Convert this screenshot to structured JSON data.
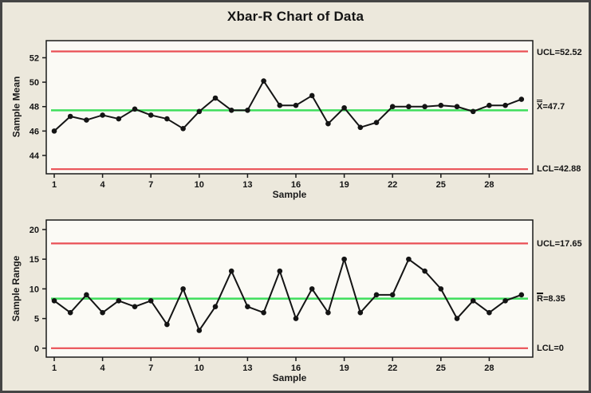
{
  "title": "Xbar-R Chart of Data",
  "colors": {
    "background": "#ece8dc",
    "plot_background": "#fbfaf5",
    "frame": "#1a1a1a",
    "limit_line": "#ea4f55",
    "center_line": "#3ede5c",
    "series_line": "#141414",
    "text": "#141414"
  },
  "chart_data": [
    {
      "type": "line",
      "name": "xbar-chart",
      "ylabel": "Sample Mean",
      "xlabel": "Sample",
      "ucl": 52.52,
      "center": 47.7,
      "lcl": 42.88,
      "ucl_label": "UCL=52.52",
      "center_symbol": "X",
      "center_value": "=47.7",
      "lcl_label": "LCL=42.88",
      "ylim": [
        42.5,
        53.4
      ],
      "yticks": [
        44,
        46,
        48,
        50,
        52
      ],
      "xticks": [
        1,
        4,
        7,
        10,
        13,
        16,
        19,
        22,
        25,
        28
      ],
      "x": [
        1,
        2,
        3,
        4,
        5,
        6,
        7,
        8,
        9,
        10,
        11,
        12,
        13,
        14,
        15,
        16,
        17,
        18,
        19,
        20,
        21,
        22,
        23,
        24,
        25,
        26,
        27,
        28,
        29,
        30
      ],
      "values": [
        46.0,
        47.2,
        46.9,
        47.3,
        47.0,
        47.8,
        47.3,
        47.0,
        46.2,
        47.6,
        48.7,
        47.7,
        47.7,
        50.1,
        48.1,
        48.1,
        48.9,
        46.6,
        47.9,
        46.3,
        46.7,
        48.0,
        48.0,
        48.0,
        48.1,
        48.0,
        47.6,
        48.1,
        48.1,
        48.6
      ],
      "legend_position": "right-annotations",
      "grid": false
    },
    {
      "type": "line",
      "name": "range-chart",
      "ylabel": "Sample Range",
      "xlabel": "Sample",
      "ucl": 17.65,
      "center": 8.35,
      "lcl": 0,
      "ucl_label": "UCL=17.65",
      "center_symbol": "R",
      "center_value": "=8.35",
      "lcl_label": "LCL=0",
      "ylim": [
        -1.5,
        21.6
      ],
      "yticks": [
        0,
        5,
        10,
        15,
        20
      ],
      "xticks": [
        1,
        4,
        7,
        10,
        13,
        16,
        19,
        22,
        25,
        28
      ],
      "x": [
        1,
        2,
        3,
        4,
        5,
        6,
        7,
        8,
        9,
        10,
        11,
        12,
        13,
        14,
        15,
        16,
        17,
        18,
        19,
        20,
        21,
        22,
        23,
        24,
        25,
        26,
        27,
        28,
        29,
        30
      ],
      "values": [
        8,
        6,
        9,
        6,
        8,
        7,
        8,
        4,
        10,
        3,
        7,
        13,
        7,
        6,
        13,
        5,
        10,
        6,
        15,
        6,
        9,
        9,
        15,
        13,
        10,
        5,
        8,
        6,
        8,
        9
      ],
      "legend_position": "right-annotations",
      "grid": false
    }
  ]
}
